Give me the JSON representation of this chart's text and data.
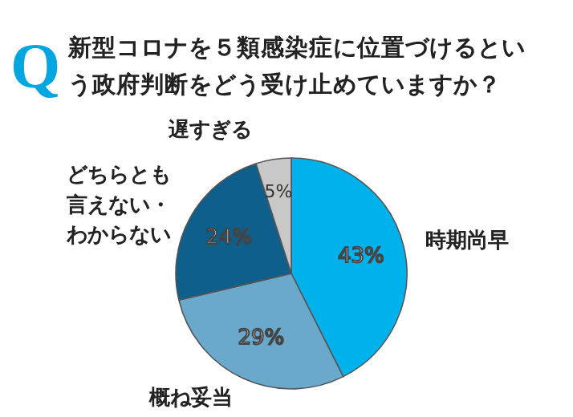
{
  "chart_data": {
    "type": "pie",
    "title": "新型コロナを５類感染症に位置づけるという政府判断をどう受け止めていますか？",
    "annotations": [
      "Q"
    ],
    "categories": [
      "時期尚早",
      "概ね妥当",
      "どちらとも言えない・わからない",
      "遅すぎる"
    ],
    "values": [
      43,
      29,
      24,
      5
    ],
    "value_labels": [
      "43%",
      "29%",
      "24%",
      "5%"
    ],
    "colors": [
      "#00b2ec",
      "#6aa8cc",
      "#0e5f8c",
      "#c8c8c8"
    ]
  }
}
